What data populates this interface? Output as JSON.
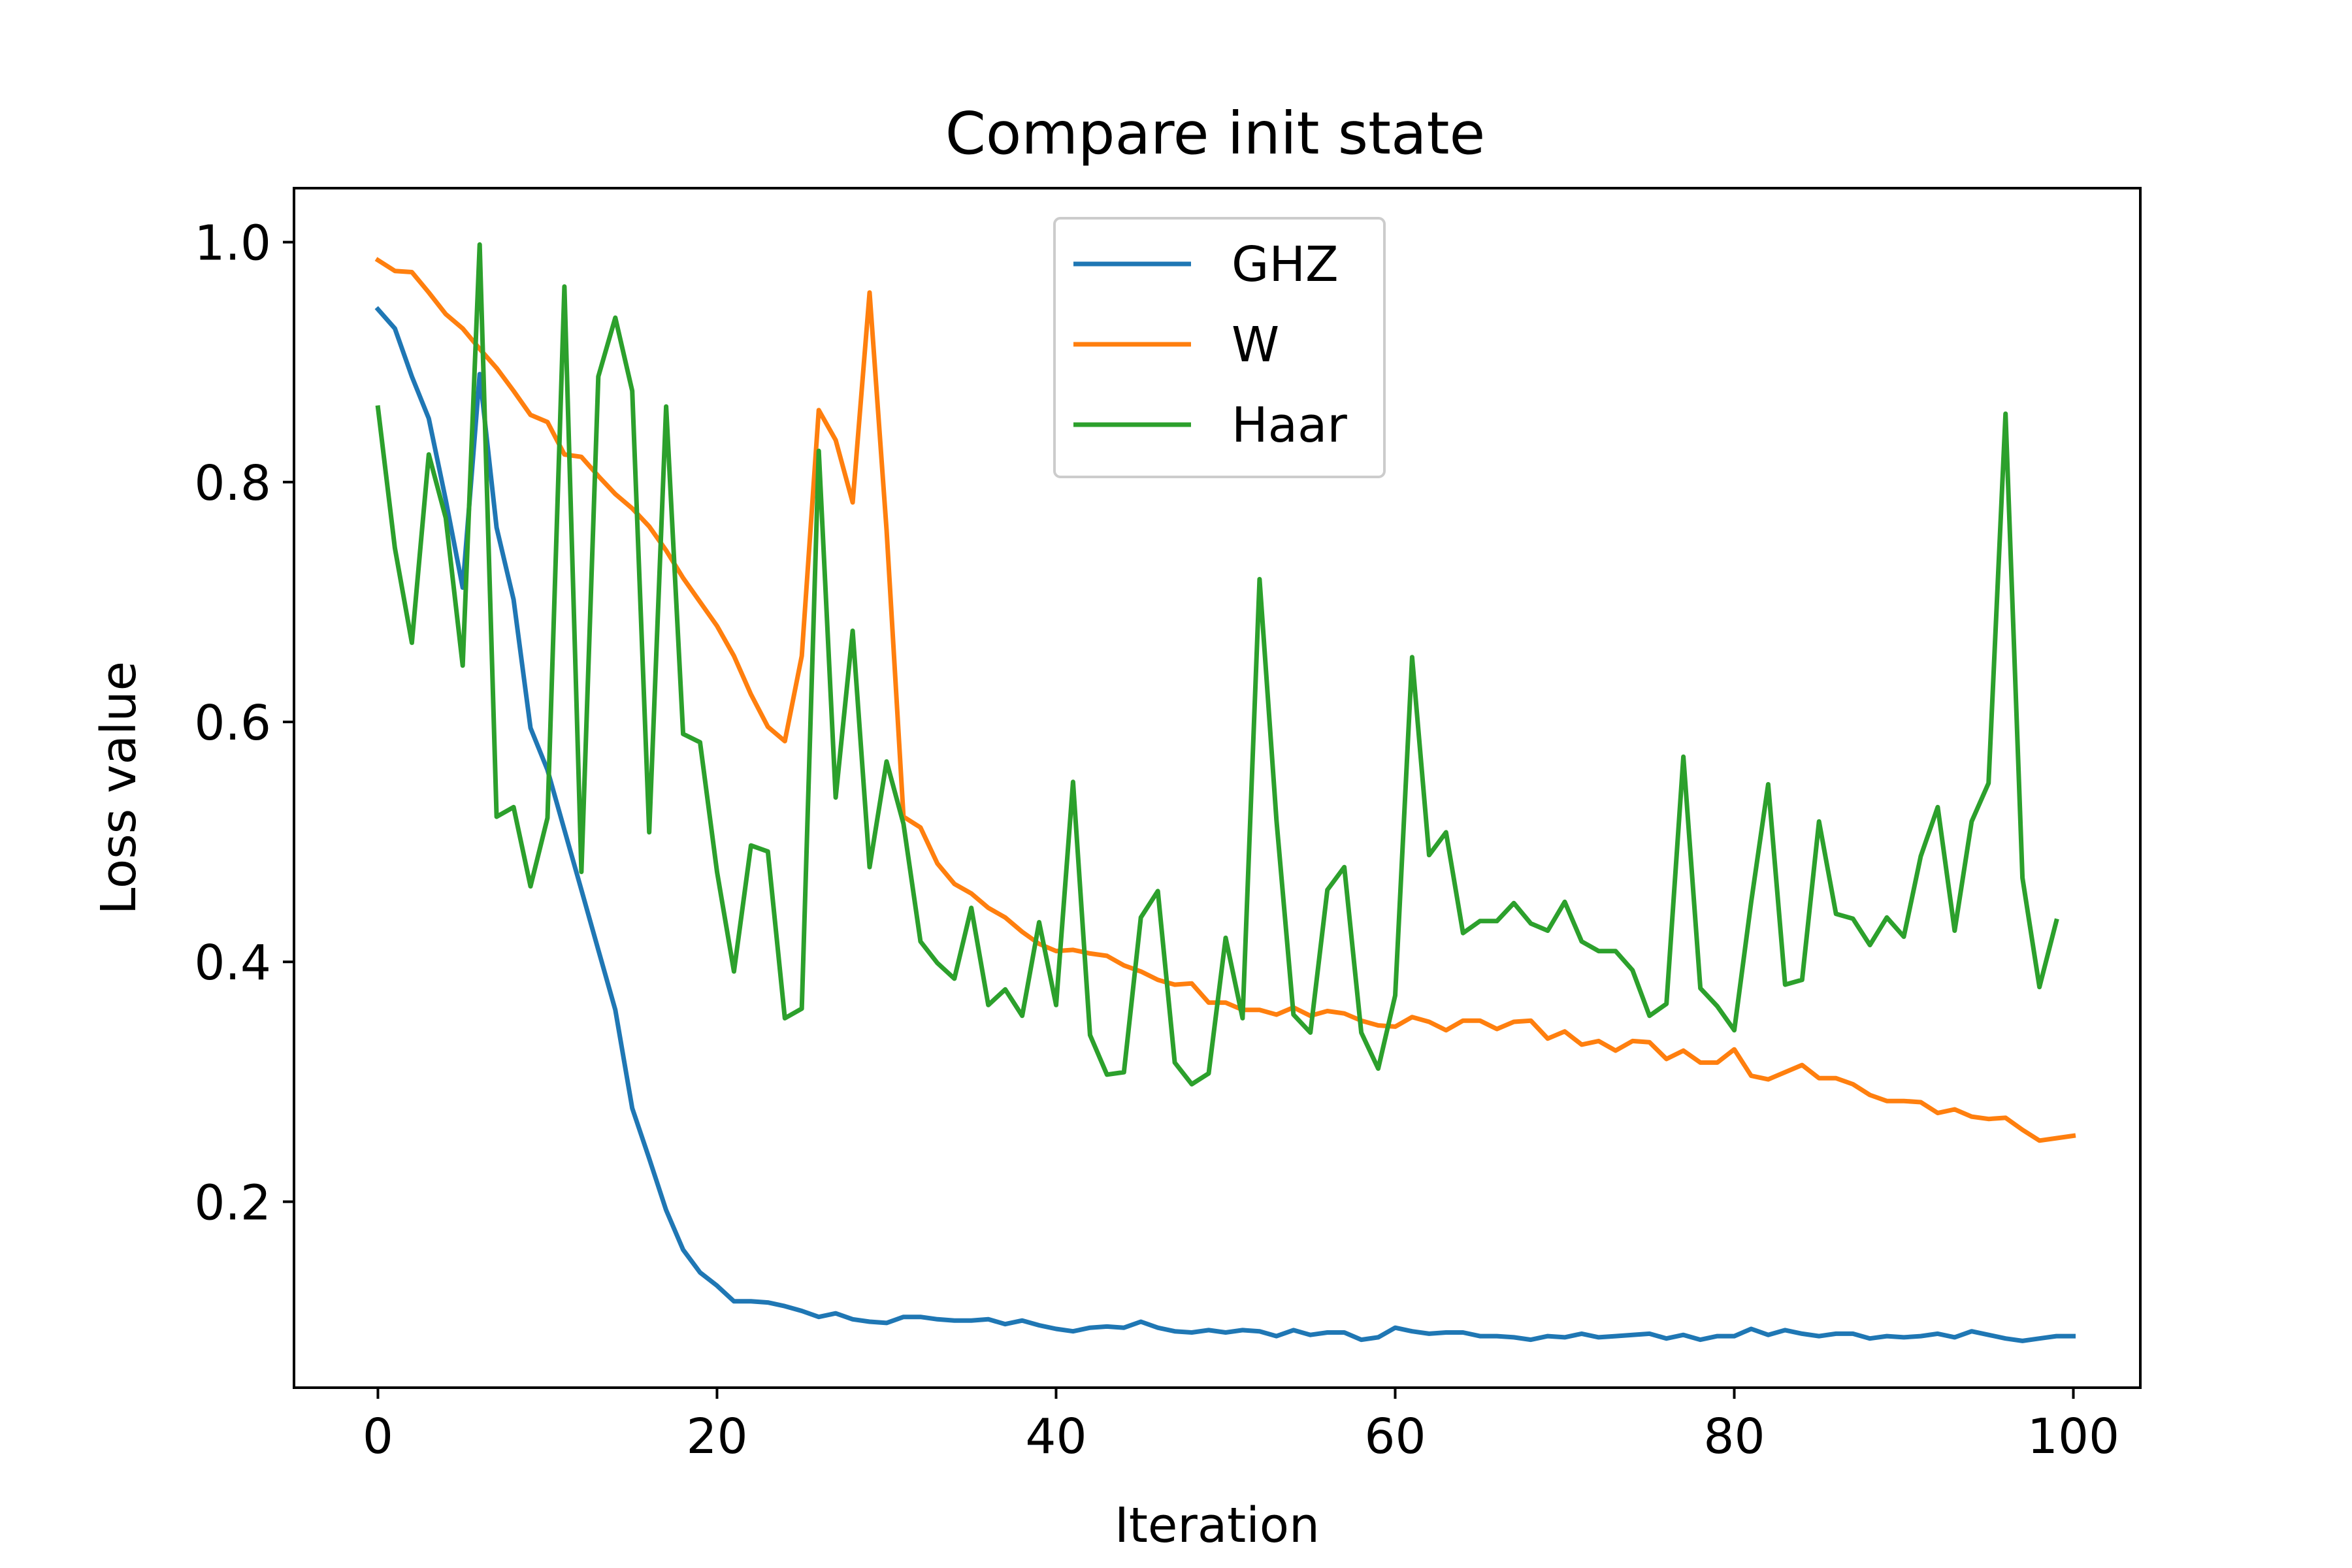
{
  "chart_data": {
    "type": "line",
    "title": "Compare init state",
    "xlabel": "Iteration",
    "ylabel": "Loss value",
    "xlim": [
      -4.95,
      103.95
    ],
    "ylim": [
      0.045,
      1.045
    ],
    "xticks": [
      0,
      20,
      40,
      60,
      80,
      100
    ],
    "yticks": [
      0.2,
      0.4,
      0.6,
      0.8,
      1.0
    ],
    "xtick_labels": [
      "0",
      "20",
      "40",
      "60",
      "80",
      "100"
    ],
    "ytick_labels": [
      "0.2",
      "0.4",
      "0.6",
      "0.8",
      "1.0"
    ],
    "grid": false,
    "legend_position": "upper-center",
    "series": [
      {
        "name": "GHZ",
        "color": "#1f77b4",
        "values": [
          0.944,
          0.928,
          0.888,
          0.853,
          0.785,
          0.712,
          0.89,
          0.762,
          0.702,
          0.595,
          0.56,
          0.51,
          0.46,
          0.41,
          0.36,
          0.278,
          0.236,
          0.193,
          0.16,
          0.141,
          0.13,
          0.117,
          0.117,
          0.116,
          0.113,
          0.109,
          0.104,
          0.107,
          0.102,
          0.1,
          0.099,
          0.104,
          0.104,
          0.102,
          0.101,
          0.101,
          0.102,
          0.098,
          0.101,
          0.097,
          0.094,
          0.092,
          0.095,
          0.096,
          0.095,
          0.1,
          0.095,
          0.092,
          0.091,
          0.093,
          0.091,
          0.093,
          0.092,
          0.088,
          0.093,
          0.089,
          0.091,
          0.091,
          0.085,
          0.087,
          0.095,
          0.092,
          0.09,
          0.091,
          0.091,
          0.088,
          0.088,
          0.087,
          0.085,
          0.088,
          0.087,
          0.09,
          0.087,
          0.088,
          0.089,
          0.09,
          0.086,
          0.089,
          0.085,
          0.088,
          0.088,
          0.094,
          0.089,
          0.093,
          0.09,
          0.088,
          0.09,
          0.09,
          0.086,
          0.088,
          0.087,
          0.088,
          0.09,
          0.087,
          0.092,
          0.089,
          0.086,
          0.084,
          0.086,
          0.088,
          0.088
        ]
      },
      {
        "name": "W",
        "color": "#ff7f0e",
        "values": [
          0.985,
          0.976,
          0.975,
          0.958,
          0.94,
          0.928,
          0.911,
          0.895,
          0.876,
          0.856,
          0.85,
          0.823,
          0.821,
          0.805,
          0.79,
          0.778,
          0.763,
          0.743,
          0.72,
          0.7,
          0.68,
          0.655,
          0.623,
          0.596,
          0.584,
          0.655,
          0.86,
          0.835,
          0.783,
          0.958,
          0.76,
          0.521,
          0.512,
          0.482,
          0.465,
          0.457,
          0.445,
          0.437,
          0.425,
          0.415,
          0.409,
          0.41,
          0.407,
          0.405,
          0.397,
          0.392,
          0.385,
          0.381,
          0.382,
          0.366,
          0.366,
          0.36,
          0.36,
          0.356,
          0.362,
          0.355,
          0.359,
          0.357,
          0.351,
          0.347,
          0.346,
          0.354,
          0.35,
          0.343,
          0.351,
          0.351,
          0.344,
          0.35,
          0.351,
          0.336,
          0.342,
          0.331,
          0.334,
          0.326,
          0.334,
          0.333,
          0.319,
          0.326,
          0.316,
          0.316,
          0.327,
          0.305,
          0.302,
          0.308,
          0.314,
          0.303,
          0.303,
          0.298,
          0.289,
          0.284,
          0.284,
          0.283,
          0.274,
          0.277,
          0.271,
          0.269,
          0.27,
          0.26,
          0.251,
          0.253,
          0.255
        ]
      },
      {
        "name": "Haar",
        "color": "#2ca02c",
        "values": [
          0.862,
          0.745,
          0.666,
          0.823,
          0.77,
          0.647,
          0.998,
          0.521,
          0.529,
          0.463,
          0.52,
          0.963,
          0.475,
          0.888,
          0.937,
          0.876,
          0.508,
          0.863,
          0.59,
          0.583,
          0.475,
          0.392,
          0.497,
          0.492,
          0.353,
          0.361,
          0.826,
          0.537,
          0.676,
          0.479,
          0.567,
          0.515,
          0.417,
          0.399,
          0.386,
          0.445,
          0.364,
          0.377,
          0.355,
          0.433,
          0.364,
          0.55,
          0.339,
          0.306,
          0.308,
          0.437,
          0.459,
          0.316,
          0.298,
          0.307,
          0.42,
          0.353,
          0.719,
          0.518,
          0.356,
          0.341,
          0.46,
          0.479,
          0.341,
          0.311,
          0.372,
          0.654,
          0.489,
          0.508,
          0.424,
          0.434,
          0.434,
          0.449,
          0.432,
          0.426,
          0.45,
          0.417,
          0.409,
          0.409,
          0.393,
          0.355,
          0.365,
          0.571,
          0.378,
          0.363,
          0.343,
          0.45,
          0.548,
          0.381,
          0.385,
          0.517,
          0.44,
          0.436,
          0.414,
          0.437,
          0.421,
          0.488,
          0.529,
          0.426,
          0.517,
          0.549,
          0.857,
          0.47,
          0.379,
          0.434
        ]
      }
    ]
  }
}
